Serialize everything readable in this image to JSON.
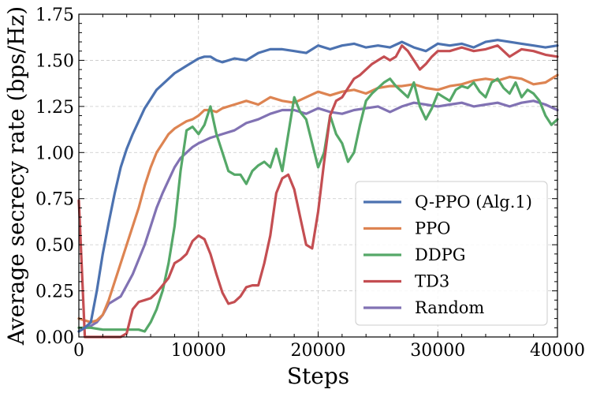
{
  "chart_data": {
    "type": "line",
    "title": "",
    "xlabel": "Steps",
    "ylabel": "Average secrecy rate (bps/Hz)",
    "xlim": [
      0,
      40000
    ],
    "ylim": [
      0,
      1.75
    ],
    "xticks": [
      0,
      10000,
      20000,
      30000,
      40000
    ],
    "yticks": [
      0.0,
      0.25,
      0.5,
      0.75,
      1.0,
      1.25,
      1.5,
      1.75
    ],
    "xtick_labels": [
      "0",
      "10000",
      "20000",
      "30000",
      "40000"
    ],
    "ytick_labels": [
      "0.00",
      "0.25",
      "0.50",
      "0.75",
      "1.00",
      "1.25",
      "1.50",
      "1.75"
    ],
    "grid": true,
    "legend_position": "lower-right",
    "series": [
      {
        "name": "Q-PPO (Alg.1)",
        "color": "#4C72B0",
        "x": [
          0,
          500,
          1000,
          1500,
          2000,
          2500,
          3000,
          3500,
          4000,
          4500,
          5000,
          5500,
          6000,
          6500,
          7000,
          7500,
          8000,
          8500,
          9000,
          9500,
          10000,
          10500,
          11000,
          11500,
          12000,
          13000,
          14000,
          15000,
          16000,
          17000,
          18000,
          19000,
          20000,
          21000,
          22000,
          23000,
          24000,
          25000,
          26000,
          27000,
          28000,
          29000,
          30000,
          31000,
          32000,
          33000,
          34000,
          35000,
          36000,
          37000,
          38000,
          39000,
          40000
        ],
        "y": [
          0.03,
          0.05,
          0.08,
          0.25,
          0.45,
          0.62,
          0.78,
          0.92,
          1.02,
          1.1,
          1.17,
          1.24,
          1.29,
          1.34,
          1.37,
          1.4,
          1.43,
          1.45,
          1.47,
          1.49,
          1.51,
          1.52,
          1.52,
          1.5,
          1.49,
          1.51,
          1.5,
          1.54,
          1.56,
          1.56,
          1.55,
          1.54,
          1.58,
          1.56,
          1.58,
          1.59,
          1.57,
          1.58,
          1.57,
          1.6,
          1.57,
          1.55,
          1.59,
          1.58,
          1.59,
          1.57,
          1.6,
          1.61,
          1.6,
          1.59,
          1.58,
          1.57,
          1.58
        ]
      },
      {
        "name": "PPO",
        "color": "#DD8452",
        "x": [
          0,
          500,
          1000,
          1500,
          2000,
          2500,
          3000,
          3500,
          4000,
          4500,
          5000,
          5500,
          6000,
          6500,
          7000,
          7500,
          8000,
          8500,
          9000,
          9500,
          10000,
          10500,
          11000,
          11500,
          12000,
          13000,
          14000,
          15000,
          16000,
          17000,
          18000,
          19000,
          20000,
          21000,
          22000,
          23000,
          24000,
          25000,
          26000,
          27000,
          28000,
          29000,
          30000,
          31000,
          32000,
          33000,
          34000,
          35000,
          36000,
          37000,
          38000,
          39000,
          40000
        ],
        "y": [
          0.1,
          0.09,
          0.08,
          0.09,
          0.12,
          0.2,
          0.3,
          0.4,
          0.5,
          0.6,
          0.7,
          0.82,
          0.92,
          1.0,
          1.05,
          1.1,
          1.13,
          1.15,
          1.17,
          1.18,
          1.2,
          1.23,
          1.23,
          1.22,
          1.24,
          1.26,
          1.28,
          1.26,
          1.3,
          1.28,
          1.27,
          1.3,
          1.33,
          1.31,
          1.33,
          1.34,
          1.32,
          1.35,
          1.36,
          1.36,
          1.37,
          1.35,
          1.34,
          1.36,
          1.37,
          1.39,
          1.4,
          1.39,
          1.41,
          1.4,
          1.37,
          1.38,
          1.42
        ]
      },
      {
        "name": "DDPG",
        "color": "#55A868",
        "x": [
          0,
          1000,
          2000,
          3000,
          4000,
          5000,
          5500,
          6000,
          6500,
          7000,
          7500,
          8000,
          8500,
          9000,
          9500,
          10000,
          10500,
          11000,
          11500,
          12000,
          12500,
          13000,
          13500,
          14000,
          14500,
          15000,
          15500,
          16000,
          16500,
          17000,
          17500,
          18000,
          18500,
          19000,
          19500,
          20000,
          20500,
          21000,
          21500,
          22000,
          22500,
          23000,
          23500,
          24000,
          24500,
          25000,
          25500,
          26000,
          26500,
          27000,
          27500,
          28000,
          28500,
          29000,
          29500,
          30000,
          30500,
          31000,
          31500,
          32000,
          32500,
          33000,
          33500,
          34000,
          34500,
          35000,
          35500,
          36000,
          36500,
          37000,
          37500,
          38000,
          38500,
          39000,
          39500,
          40000
        ],
        "y": [
          0.05,
          0.05,
          0.04,
          0.04,
          0.04,
          0.04,
          0.03,
          0.08,
          0.15,
          0.25,
          0.4,
          0.6,
          0.9,
          1.12,
          1.14,
          1.1,
          1.15,
          1.25,
          1.1,
          1.0,
          0.9,
          0.88,
          0.88,
          0.83,
          0.9,
          0.93,
          0.95,
          0.92,
          1.02,
          0.9,
          1.1,
          1.3,
          1.22,
          1.18,
          1.05,
          0.92,
          1.0,
          1.2,
          1.1,
          1.05,
          0.95,
          1.0,
          1.15,
          1.28,
          1.32,
          1.35,
          1.38,
          1.4,
          1.36,
          1.33,
          1.3,
          1.38,
          1.25,
          1.18,
          1.24,
          1.32,
          1.3,
          1.28,
          1.34,
          1.36,
          1.35,
          1.38,
          1.33,
          1.3,
          1.38,
          1.4,
          1.35,
          1.32,
          1.38,
          1.3,
          1.34,
          1.32,
          1.28,
          1.2,
          1.15,
          1.18
        ]
      },
      {
        "name": "TD3",
        "color": "#C44E52",
        "x": [
          0,
          500,
          1000,
          1500,
          2000,
          2500,
          3000,
          3500,
          4000,
          4500,
          5000,
          5500,
          6000,
          6500,
          7000,
          7500,
          8000,
          8500,
          9000,
          9500,
          10000,
          10500,
          11000,
          11500,
          12000,
          12500,
          13000,
          13500,
          14000,
          14500,
          15000,
          15500,
          16000,
          16500,
          17000,
          17500,
          18000,
          18500,
          19000,
          19500,
          20000,
          20500,
          21000,
          21500,
          22000,
          22500,
          23000,
          23500,
          24000,
          24500,
          25000,
          25500,
          26000,
          26500,
          27000,
          27500,
          28000,
          28500,
          29000,
          29500,
          30000,
          31000,
          32000,
          33000,
          34000,
          35000,
          36000,
          37000,
          38000,
          39000,
          40000
        ],
        "y": [
          0.74,
          0.0,
          0.0,
          0.0,
          0.0,
          0.0,
          0.0,
          0.0,
          0.02,
          0.15,
          0.19,
          0.2,
          0.21,
          0.24,
          0.28,
          0.32,
          0.4,
          0.42,
          0.45,
          0.52,
          0.55,
          0.53,
          0.45,
          0.34,
          0.24,
          0.18,
          0.19,
          0.22,
          0.27,
          0.28,
          0.28,
          0.4,
          0.55,
          0.78,
          0.86,
          0.88,
          0.8,
          0.65,
          0.5,
          0.48,
          0.68,
          0.95,
          1.2,
          1.28,
          1.3,
          1.35,
          1.4,
          1.42,
          1.45,
          1.48,
          1.5,
          1.52,
          1.5,
          1.52,
          1.58,
          1.55,
          1.5,
          1.45,
          1.48,
          1.52,
          1.55,
          1.55,
          1.57,
          1.55,
          1.56,
          1.58,
          1.52,
          1.56,
          1.55,
          1.53,
          1.52
        ]
      },
      {
        "name": "Random",
        "color": "#8172B3",
        "x": [
          0,
          500,
          1000,
          1500,
          2000,
          2500,
          3000,
          3500,
          4000,
          4500,
          5000,
          5500,
          6000,
          6500,
          7000,
          7500,
          8000,
          8500,
          9000,
          9500,
          10000,
          11000,
          12000,
          13000,
          14000,
          15000,
          16000,
          17000,
          18000,
          19000,
          20000,
          21000,
          22000,
          23000,
          24000,
          25000,
          26000,
          27000,
          28000,
          29000,
          30000,
          31000,
          32000,
          33000,
          34000,
          35000,
          36000,
          37000,
          38000,
          39000,
          40000
        ],
        "y": [
          0.03,
          0.05,
          0.06,
          0.08,
          0.12,
          0.18,
          0.2,
          0.22,
          0.28,
          0.34,
          0.42,
          0.5,
          0.6,
          0.7,
          0.78,
          0.85,
          0.92,
          0.97,
          1.0,
          1.03,
          1.05,
          1.08,
          1.1,
          1.12,
          1.16,
          1.18,
          1.21,
          1.23,
          1.23,
          1.21,
          1.24,
          1.22,
          1.21,
          1.23,
          1.24,
          1.25,
          1.22,
          1.25,
          1.27,
          1.26,
          1.25,
          1.26,
          1.27,
          1.25,
          1.26,
          1.27,
          1.25,
          1.27,
          1.28,
          1.26,
          1.23
        ]
      }
    ]
  }
}
